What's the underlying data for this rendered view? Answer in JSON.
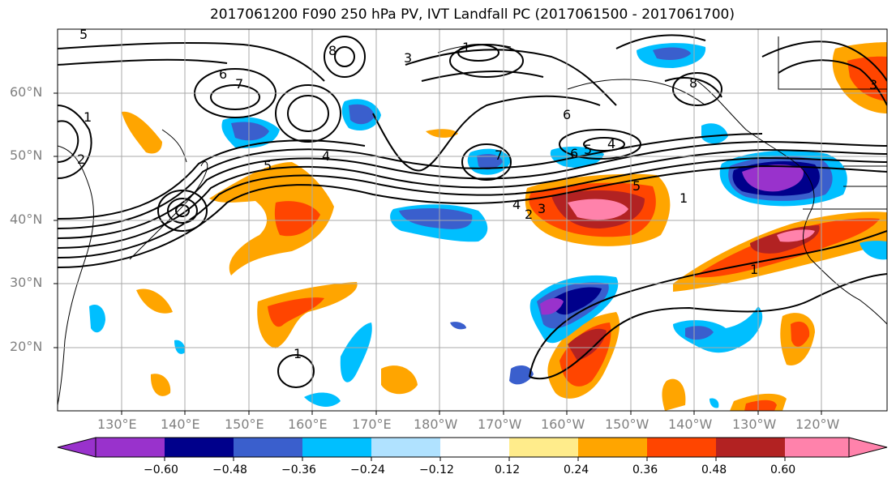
{
  "title": "2017061200 F090 250 hPa PV, IVT Landfall PC (2017061500 - 2017061700)",
  "lat_labels": [
    "60°N",
    "50°N",
    "40°N",
    "30°N",
    "20°N"
  ],
  "lon_labels": [
    "130°E",
    "140°E",
    "150°E",
    "160°E",
    "170°E",
    "180°W",
    "170°W",
    "160°W",
    "150°W",
    "140°W",
    "130°W",
    "120°W"
  ],
  "colorbar": {
    "ticks": [
      "−0.60",
      "−0.48",
      "−0.36",
      "−0.24",
      "−0.12",
      "0.12",
      "0.24",
      "0.36",
      "0.48",
      "0.60"
    ],
    "colors": [
      "#9932cc",
      "#00008b",
      "#3a5fcd",
      "#00bfff",
      "#b0e2ff",
      "#ffffff",
      "#ffec8b",
      "#ffa500",
      "#ff4500",
      "#b22222",
      "#ff82ab"
    ]
  },
  "contour_labels": [
    "5",
    "6",
    "7",
    "8",
    "1",
    "2",
    "3",
    "4",
    "5",
    "4",
    "5",
    "6",
    "7",
    "8",
    "1",
    "2",
    "3",
    "4",
    "5",
    "6",
    "1",
    "1",
    "1",
    "3"
  ],
  "colors": {
    "grid": "#a9a9a9",
    "coast": "#000000",
    "contour": "#000000"
  }
}
